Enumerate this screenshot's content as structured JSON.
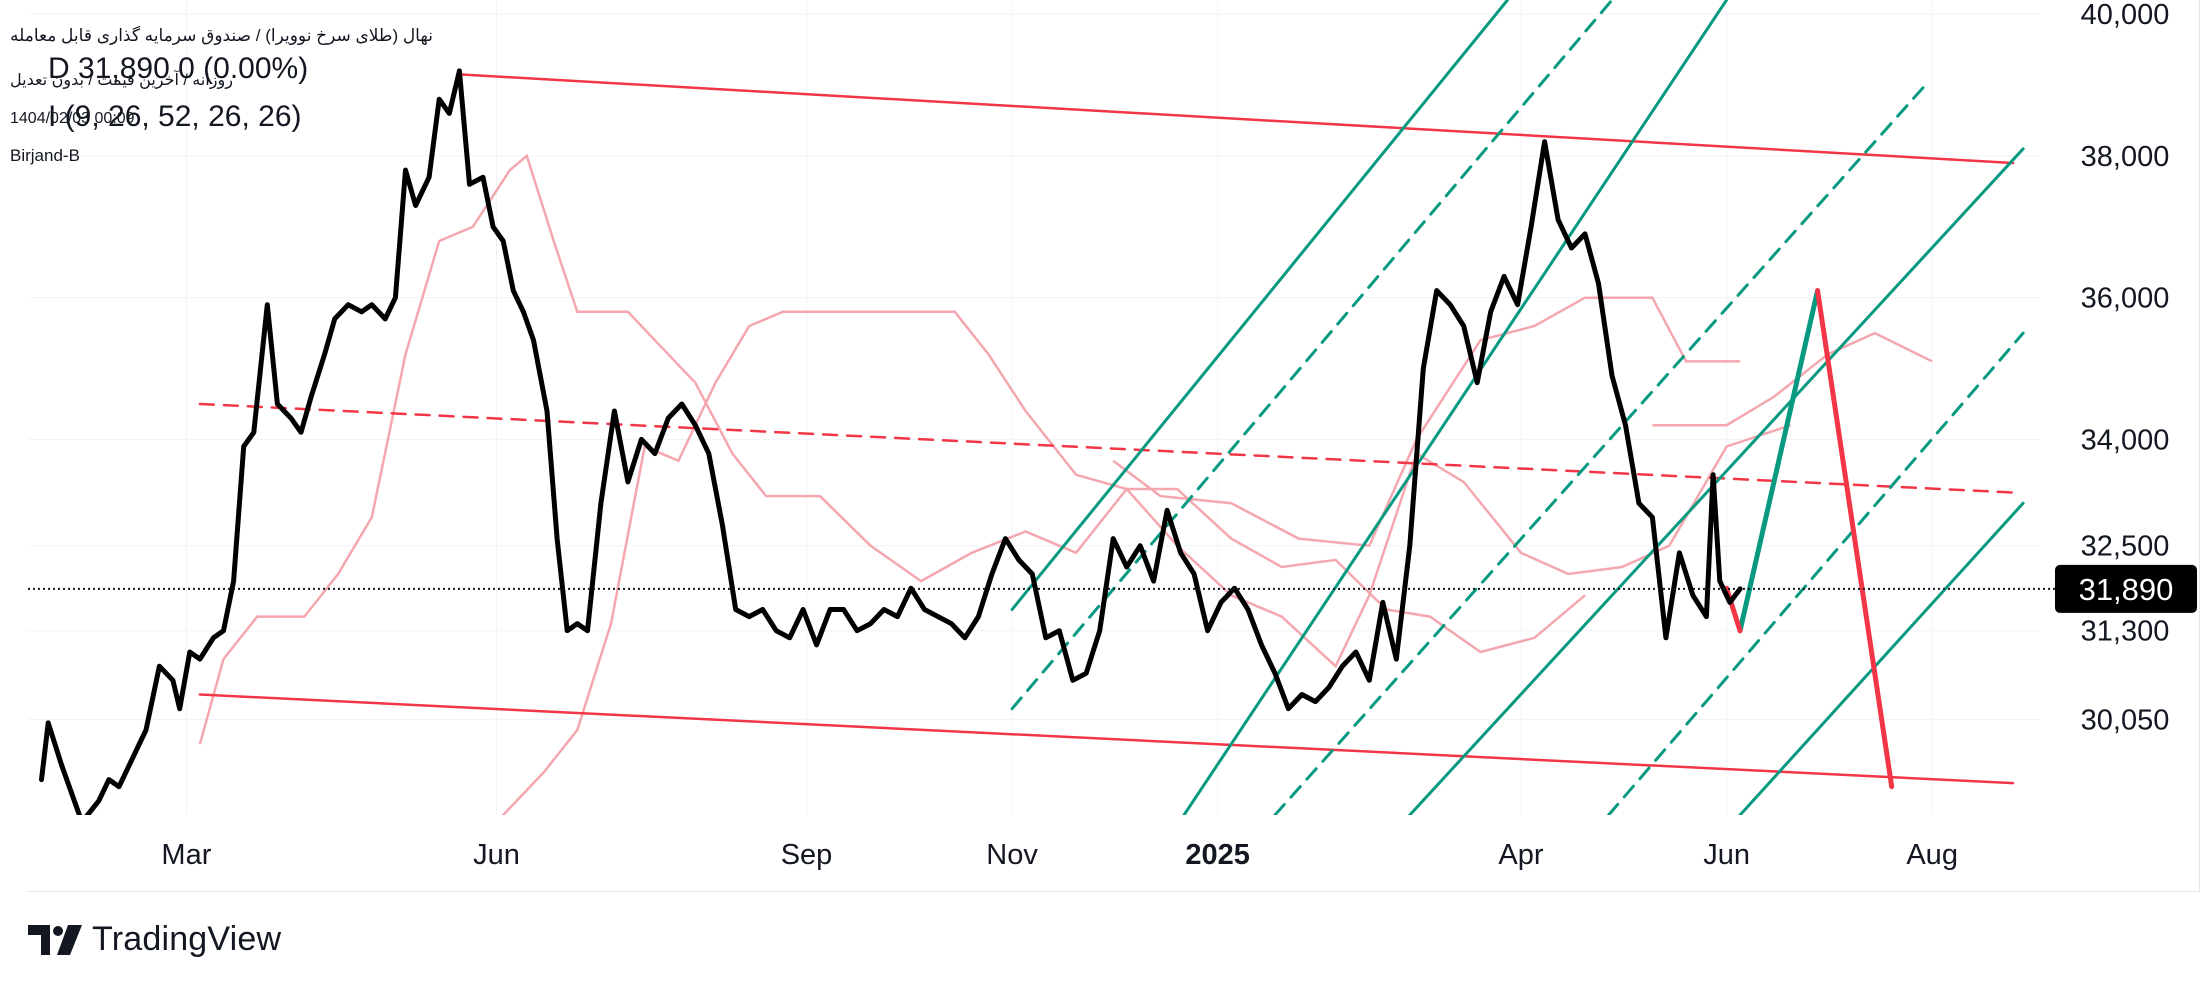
{
  "header": {
    "symbol": "نهال (طلای سرخ نوویرا) / صندوق سرمایه گذاری قابل معامله",
    "interval": "روزانه / آخرین قیمت / بدون تعدیل",
    "price_prefix": "D",
    "price": "31,890",
    "change": "0 (0.00%)",
    "indicator": "I (9, 26, 52, 26, 26)",
    "datetime": "1404/02/03 00:09",
    "brand": "Birjand-B"
  },
  "branding": {
    "name": "TradingView"
  },
  "colors": {
    "price_line": "#000000",
    "ichimoku": "#f4a7ae",
    "channel": "#f23645",
    "pitchfork": "#089981",
    "grid": "#f0f3fa",
    "axis_text": "#131722",
    "last_price_bg": "#000000"
  },
  "chart_data": {
    "type": "line",
    "title": "",
    "xlabel": "",
    "ylabel": "",
    "ylim": [
      28700,
      40200
    ],
    "y_ticks": [
      "40,000",
      "38,000",
      "36,000",
      "34,000",
      "32,500",
      "31,300",
      "30,050"
    ],
    "y_tick_values": [
      40000,
      38000,
      36000,
      34000,
      32500,
      31300,
      30050
    ],
    "x_ticks": [
      "Mar",
      "Jun",
      "Sep",
      "Nov",
      "2025",
      "Apr",
      "Jun",
      "Aug"
    ],
    "x_tick_dates": [
      "2024-03-01",
      "2024-06-01",
      "2024-09-01",
      "2024-11-01",
      "2025-01-01",
      "2025-04-01",
      "2025-06-01",
      "2025-08-01"
    ],
    "last_price": {
      "label": "31,890",
      "value": 31890
    },
    "series": [
      {
        "kind": "price",
        "points": [
          [
            "2024-01-18",
            29200
          ],
          [
            "2024-01-20",
            30000
          ],
          [
            "2024-01-24",
            29400
          ],
          [
            "2024-01-30",
            28600
          ],
          [
            "2024-02-04",
            28900
          ],
          [
            "2024-02-07",
            29200
          ],
          [
            "2024-02-10",
            29100
          ],
          [
            "2024-02-14",
            29500
          ],
          [
            "2024-02-18",
            29900
          ],
          [
            "2024-02-22",
            30800
          ],
          [
            "2024-02-26",
            30600
          ],
          [
            "2024-02-28",
            30200
          ],
          [
            "2024-03-02",
            31000
          ],
          [
            "2024-03-05",
            30900
          ],
          [
            "2024-03-09",
            31200
          ],
          [
            "2024-03-12",
            31300
          ],
          [
            "2024-03-15",
            32000
          ],
          [
            "2024-03-18",
            33900
          ],
          [
            "2024-03-21",
            34100
          ],
          [
            "2024-03-25",
            35900
          ],
          [
            "2024-03-28",
            34500
          ],
          [
            "2024-04-01",
            34300
          ],
          [
            "2024-04-04",
            34100
          ],
          [
            "2024-04-07",
            34600
          ],
          [
            "2024-04-11",
            35200
          ],
          [
            "2024-04-14",
            35700
          ],
          [
            "2024-04-18",
            35900
          ],
          [
            "2024-04-22",
            35800
          ],
          [
            "2024-04-25",
            35900
          ],
          [
            "2024-04-29",
            35700
          ],
          [
            "2024-05-02",
            36000
          ],
          [
            "2024-05-05",
            37800
          ],
          [
            "2024-05-08",
            37300
          ],
          [
            "2024-05-12",
            37700
          ],
          [
            "2024-05-15",
            38800
          ],
          [
            "2024-05-18",
            38600
          ],
          [
            "2024-05-21",
            39200
          ],
          [
            "2024-05-24",
            37600
          ],
          [
            "2024-05-28",
            37700
          ],
          [
            "2024-05-31",
            37000
          ],
          [
            "2024-06-03",
            36800
          ],
          [
            "2024-06-06",
            36100
          ],
          [
            "2024-06-09",
            35800
          ],
          [
            "2024-06-12",
            35400
          ],
          [
            "2024-06-16",
            34400
          ],
          [
            "2024-06-19",
            32600
          ],
          [
            "2024-06-22",
            31300
          ],
          [
            "2024-06-25",
            31400
          ],
          [
            "2024-06-28",
            31300
          ],
          [
            "2024-07-02",
            33100
          ],
          [
            "2024-07-06",
            34400
          ],
          [
            "2024-07-10",
            33400
          ],
          [
            "2024-07-14",
            34000
          ],
          [
            "2024-07-18",
            33800
          ],
          [
            "2024-07-22",
            34300
          ],
          [
            "2024-07-26",
            34500
          ],
          [
            "2024-07-30",
            34200
          ],
          [
            "2024-08-03",
            33800
          ],
          [
            "2024-08-07",
            32800
          ],
          [
            "2024-08-11",
            31600
          ],
          [
            "2024-08-15",
            31500
          ],
          [
            "2024-08-19",
            31600
          ],
          [
            "2024-08-23",
            31300
          ],
          [
            "2024-08-27",
            31200
          ],
          [
            "2024-08-31",
            31600
          ],
          [
            "2024-09-04",
            31100
          ],
          [
            "2024-09-08",
            31600
          ],
          [
            "2024-09-12",
            31600
          ],
          [
            "2024-09-16",
            31300
          ],
          [
            "2024-09-20",
            31400
          ],
          [
            "2024-09-24",
            31600
          ],
          [
            "2024-09-28",
            31500
          ],
          [
            "2024-10-02",
            31900
          ],
          [
            "2024-10-06",
            31600
          ],
          [
            "2024-10-10",
            31500
          ],
          [
            "2024-10-14",
            31400
          ],
          [
            "2024-10-18",
            31200
          ],
          [
            "2024-10-22",
            31500
          ],
          [
            "2024-10-26",
            32100
          ],
          [
            "2024-10-30",
            32600
          ],
          [
            "2024-11-03",
            32300
          ],
          [
            "2024-11-07",
            32100
          ],
          [
            "2024-11-11",
            31200
          ],
          [
            "2024-11-15",
            31300
          ],
          [
            "2024-11-19",
            30600
          ],
          [
            "2024-11-23",
            30700
          ],
          [
            "2024-11-27",
            31300
          ],
          [
            "2024-12-01",
            32600
          ],
          [
            "2024-12-05",
            32200
          ],
          [
            "2024-12-09",
            32500
          ],
          [
            "2024-12-13",
            32000
          ],
          [
            "2024-12-17",
            33000
          ],
          [
            "2024-12-21",
            32400
          ],
          [
            "2024-12-25",
            32100
          ],
          [
            "2024-12-29",
            31300
          ],
          [
            "2025-01-02",
            31700
          ],
          [
            "2025-01-06",
            31900
          ],
          [
            "2025-01-10",
            31600
          ],
          [
            "2025-01-14",
            31100
          ],
          [
            "2025-01-18",
            30700
          ],
          [
            "2025-01-22",
            30200
          ],
          [
            "2025-01-26",
            30400
          ],
          [
            "2025-01-30",
            30300
          ],
          [
            "2025-02-03",
            30500
          ],
          [
            "2025-02-07",
            30800
          ],
          [
            "2025-02-11",
            31000
          ],
          [
            "2025-02-15",
            30600
          ],
          [
            "2025-02-19",
            31700
          ],
          [
            "2025-02-23",
            30900
          ],
          [
            "2025-02-27",
            32500
          ],
          [
            "2025-03-03",
            35000
          ],
          [
            "2025-03-07",
            36100
          ],
          [
            "2025-03-11",
            35900
          ],
          [
            "2025-03-15",
            35600
          ],
          [
            "2025-03-19",
            34800
          ],
          [
            "2025-03-23",
            35800
          ],
          [
            "2025-03-27",
            36300
          ],
          [
            "2025-03-31",
            35900
          ],
          [
            "2025-04-04",
            37000
          ],
          [
            "2025-04-08",
            38200
          ],
          [
            "2025-04-12",
            37100
          ],
          [
            "2025-04-16",
            36700
          ],
          [
            "2025-04-20",
            36900
          ],
          [
            "2025-04-24",
            36200
          ],
          [
            "2025-04-28",
            34900
          ],
          [
            "2025-05-02",
            34200
          ],
          [
            "2025-05-06",
            33100
          ],
          [
            "2025-05-10",
            32900
          ],
          [
            "2025-05-14",
            31200
          ],
          [
            "2025-05-18",
            32400
          ],
          [
            "2025-05-22",
            31800
          ],
          [
            "2025-05-26",
            31500
          ],
          [
            "2025-05-28",
            33500
          ],
          [
            "2025-05-30",
            32000
          ],
          [
            "2025-06-02",
            31700
          ],
          [
            "2025-06-05",
            31890
          ]
        ]
      },
      {
        "kind": "ichimoku-line-1",
        "points": [
          [
            "2024-03-05",
            29700
          ],
          [
            "2024-03-12",
            30900
          ],
          [
            "2024-03-22",
            31500
          ],
          [
            "2024-04-05",
            31500
          ],
          [
            "2024-04-15",
            32100
          ],
          [
            "2024-04-25",
            32900
          ],
          [
            "2024-05-05",
            35200
          ],
          [
            "2024-05-15",
            36800
          ],
          [
            "2024-05-25",
            37000
          ],
          [
            "2024-06-05",
            37800
          ],
          [
            "2024-06-10",
            38000
          ],
          [
            "2024-06-18",
            36800
          ],
          [
            "2024-06-25",
            35800
          ],
          [
            "2024-07-10",
            35800
          ],
          [
            "2024-07-20",
            35300
          ],
          [
            "2024-07-30",
            34800
          ],
          [
            "2024-08-10",
            33800
          ],
          [
            "2024-08-20",
            33200
          ],
          [
            "2024-09-05",
            33200
          ],
          [
            "2024-09-20",
            32500
          ],
          [
            "2024-10-05",
            32000
          ],
          [
            "2024-10-20",
            32400
          ],
          [
            "2024-11-05",
            32700
          ],
          [
            "2024-11-20",
            32400
          ],
          [
            "2024-12-05",
            33300
          ],
          [
            "2024-12-20",
            33300
          ],
          [
            "2025-01-05",
            32600
          ],
          [
            "2025-01-20",
            32200
          ],
          [
            "2025-02-05",
            32300
          ],
          [
            "2025-02-20",
            31600
          ],
          [
            "2025-03-05",
            31500
          ],
          [
            "2025-03-20",
            31000
          ],
          [
            "2025-04-05",
            31200
          ],
          [
            "2025-04-20",
            31800
          ]
        ]
      },
      {
        "kind": "ichimoku-line-2",
        "points": [
          [
            "2024-06-01",
            28600
          ],
          [
            "2024-06-15",
            29300
          ],
          [
            "2024-06-25",
            29900
          ],
          [
            "2024-07-05",
            31400
          ],
          [
            "2024-07-15",
            33900
          ],
          [
            "2024-07-25",
            33700
          ],
          [
            "2024-08-05",
            34800
          ],
          [
            "2024-08-15",
            35600
          ],
          [
            "2024-08-25",
            35800
          ],
          [
            "2024-09-15",
            35800
          ],
          [
            "2024-10-15",
            35800
          ],
          [
            "2024-10-25",
            35200
          ],
          [
            "2024-11-05",
            34400
          ],
          [
            "2024-11-20",
            33500
          ],
          [
            "2024-12-05",
            33300
          ],
          [
            "2024-12-20",
            32500
          ],
          [
            "2025-01-05",
            31800
          ],
          [
            "2025-01-20",
            31500
          ],
          [
            "2025-02-05",
            30800
          ],
          [
            "2025-02-15",
            31800
          ],
          [
            "2025-03-01",
            33800
          ],
          [
            "2025-03-15",
            33400
          ],
          [
            "2025-04-01",
            32400
          ],
          [
            "2025-04-15",
            32100
          ],
          [
            "2025-05-01",
            32200
          ],
          [
            "2025-05-15",
            32500
          ],
          [
            "2025-06-01",
            33900
          ],
          [
            "2025-06-20",
            34200
          ]
        ]
      },
      {
        "kind": "ichimoku-line-3",
        "points": [
          [
            "2024-12-01",
            33700
          ],
          [
            "2024-12-15",
            33200
          ],
          [
            "2025-01-05",
            33100
          ],
          [
            "2025-01-25",
            32600
          ],
          [
            "2025-02-15",
            32500
          ],
          [
            "2025-03-01",
            34000
          ],
          [
            "2025-03-20",
            35400
          ],
          [
            "2025-04-05",
            35600
          ],
          [
            "2025-04-20",
            36000
          ],
          [
            "2025-05-10",
            36000
          ],
          [
            "2025-05-20",
            35100
          ],
          [
            "2025-06-05",
            35100
          ]
        ]
      },
      {
        "kind": "ichimoku-line-4",
        "points": [
          [
            "2025-05-10",
            34200
          ],
          [
            "2025-06-01",
            34200
          ],
          [
            "2025-06-15",
            34600
          ],
          [
            "2025-07-01",
            35200
          ],
          [
            "2025-07-15",
            35500
          ],
          [
            "2025-08-01",
            35100
          ]
        ]
      }
    ],
    "trendlines": [
      {
        "style": "channel-solid",
        "from": [
          "2024-05-21",
          39150
        ],
        "to": [
          "2025-08-25",
          37900
        ]
      },
      {
        "style": "channel-dashed",
        "from": [
          "2024-03-05",
          34500
        ],
        "to": [
          "2025-08-25",
          33250
        ]
      },
      {
        "style": "channel-solid",
        "from": [
          "2024-03-05",
          30400
        ],
        "to": [
          "2025-08-25",
          29150
        ]
      },
      {
        "style": "pitchfork-solid",
        "from": [
          "2024-11-01",
          31600
        ],
        "to": [
          "2025-03-28",
          40200
        ]
      },
      {
        "style": "pitchfork-dashed",
        "from": [
          "2024-11-01",
          30200
        ],
        "to": [
          "2025-04-28",
          40200
        ]
      },
      {
        "style": "pitchfork-solid",
        "from": [
          "2024-12-22",
          28700
        ],
        "to": [
          "2025-06-01",
          40200
        ]
      },
      {
        "style": "pitchfork-dashed",
        "from": [
          "2025-01-18",
          28700
        ],
        "to": [
          "2025-07-30",
          39000
        ]
      },
      {
        "style": "pitchfork-solid",
        "from": [
          "2025-02-27",
          28700
        ],
        "to": [
          "2025-08-28",
          38100
        ]
      },
      {
        "style": "pitchfork-dashed",
        "from": [
          "2025-04-27",
          28700
        ],
        "to": [
          "2025-08-28",
          35500
        ]
      },
      {
        "style": "pitchfork-solid",
        "from": [
          "2025-06-05",
          28700
        ],
        "to": [
          "2025-08-28",
          33100
        ]
      },
      {
        "style": "projection-up",
        "from": [
          "2025-06-05",
          31300
        ],
        "to": [
          "2025-06-28",
          36100
        ]
      },
      {
        "style": "projection-down",
        "from": [
          "2025-06-28",
          36100
        ],
        "to": [
          "2025-07-20",
          29100
        ]
      },
      {
        "style": "projection-pre",
        "from": [
          "2025-06-01",
          31900
        ],
        "to": [
          "2025-06-05",
          31300
        ]
      }
    ]
  }
}
